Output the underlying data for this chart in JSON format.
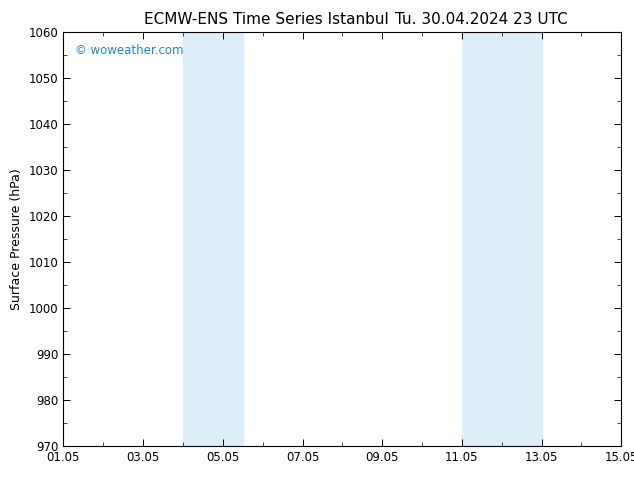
{
  "title_left": "ECMW-ENS Time Series Istanbul",
  "title_right": "Tu. 30.04.2024 23 UTC",
  "ylabel": "Surface Pressure (hPa)",
  "xlabel": "",
  "watermark": "© woweather.com",
  "ylim": [
    970,
    1060
  ],
  "yticks": [
    970,
    980,
    990,
    1000,
    1010,
    1020,
    1030,
    1040,
    1050,
    1060
  ],
  "xtick_labels": [
    "01.05",
    "03.05",
    "05.05",
    "07.05",
    "09.05",
    "11.05",
    "13.05",
    "15.05"
  ],
  "xtick_positions": [
    0,
    2,
    4,
    6,
    8,
    10,
    12,
    14
  ],
  "xlim": [
    0,
    14
  ],
  "shaded_bands": [
    {
      "xmin": 3.0,
      "xmax": 4.5
    },
    {
      "xmin": 10.0,
      "xmax": 12.0
    }
  ],
  "shade_color": "#ddeef8",
  "shade_alpha": 1.0,
  "bg_color": "#ffffff",
  "plot_bg_color": "#ffffff",
  "title_fontsize": 11,
  "tick_fontsize": 8.5,
  "ylabel_fontsize": 9,
  "watermark_color": "#2288cc",
  "border_color": "#000000"
}
